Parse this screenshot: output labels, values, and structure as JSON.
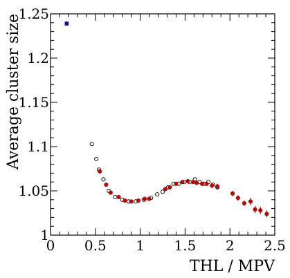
{
  "chart_data": {
    "type": "scatter",
    "title": "",
    "xlabel": "THL / MPV",
    "ylabel": "Average cluster size",
    "xlim": [
      0,
      2.5
    ],
    "ylim": [
      1,
      1.25
    ],
    "x_ticks": [
      {
        "value": 0,
        "label": "0"
      },
      {
        "value": 0.5,
        "label": "0.5"
      },
      {
        "value": 1,
        "label": "1"
      },
      {
        "value": 1.5,
        "label": "1.5"
      },
      {
        "value": 2,
        "label": "2"
      },
      {
        "value": 2.5,
        "label": "2.5"
      }
    ],
    "y_ticks": [
      {
        "value": 1,
        "label": "1"
      },
      {
        "value": 1.05,
        "label": "1.05"
      },
      {
        "value": 1.1,
        "label": "1.1"
      },
      {
        "value": 1.15,
        "label": "1.15"
      },
      {
        "value": 1.2,
        "label": "1.2"
      },
      {
        "value": 1.25,
        "label": "1.25"
      }
    ],
    "grid": false,
    "series": [
      {
        "marker": "open-circle",
        "color": "#000000",
        "points": [
          {
            "x": 0.46,
            "y": 1.103
          },
          {
            "x": 0.51,
            "y": 1.086
          },
          {
            "x": 0.54,
            "y": 1.074
          },
          {
            "x": 0.59,
            "y": 1.063
          },
          {
            "x": 0.65,
            "y": 1.05
          },
          {
            "x": 0.72,
            "y": 1.043
          },
          {
            "x": 0.8,
            "y": 1.04
          },
          {
            "x": 0.87,
            "y": 1.038
          },
          {
            "x": 0.95,
            "y": 1.038
          },
          {
            "x": 1.04,
            "y": 1.04
          },
          {
            "x": 1.12,
            "y": 1.042
          },
          {
            "x": 1.19,
            "y": 1.046
          },
          {
            "x": 1.25,
            "y": 1.049
          },
          {
            "x": 1.31,
            "y": 1.054
          },
          {
            "x": 1.37,
            "y": 1.058
          },
          {
            "x": 1.43,
            "y": 1.058
          },
          {
            "x": 1.49,
            "y": 1.06
          },
          {
            "x": 1.55,
            "y": 1.06
          },
          {
            "x": 1.61,
            "y": 1.063
          },
          {
            "x": 1.66,
            "y": 1.06
          },
          {
            "x": 1.71,
            "y": 1.058
          },
          {
            "x": 1.76,
            "y": 1.06
          },
          {
            "x": 1.81,
            "y": 1.057
          },
          {
            "x": 1.86,
            "y": 1.054
          }
        ]
      },
      {
        "marker": "filled-circle",
        "color": "#b00c0c",
        "points": [
          {
            "x": 0.55,
            "y": 1.072,
            "err": 0.002
          },
          {
            "x": 0.62,
            "y": 1.057,
            "err": 0.002
          },
          {
            "x": 0.67,
            "y": 1.048,
            "err": 0.002
          },
          {
            "x": 0.76,
            "y": 1.043,
            "err": 0.002
          },
          {
            "x": 0.83,
            "y": 1.039,
            "err": 0.002
          },
          {
            "x": 0.9,
            "y": 1.038,
            "err": 0.002
          },
          {
            "x": 0.98,
            "y": 1.039,
            "err": 0.002
          },
          {
            "x": 1.05,
            "y": 1.041,
            "err": 0.002
          },
          {
            "x": 1.1,
            "y": 1.041,
            "err": 0.002
          },
          {
            "x": 1.28,
            "y": 1.052,
            "err": 0.002
          },
          {
            "x": 1.33,
            "y": 1.054,
            "err": 0.002
          },
          {
            "x": 1.4,
            "y": 1.058,
            "err": 0.002
          },
          {
            "x": 1.47,
            "y": 1.06,
            "err": 0.002
          },
          {
            "x": 1.53,
            "y": 1.061,
            "err": 0.002
          },
          {
            "x": 1.59,
            "y": 1.06,
            "err": 0.002
          },
          {
            "x": 1.63,
            "y": 1.059,
            "err": 0.002
          },
          {
            "x": 1.69,
            "y": 1.058,
            "err": 0.002
          },
          {
            "x": 1.74,
            "y": 1.058,
            "err": 0.002
          },
          {
            "x": 1.8,
            "y": 1.056,
            "err": 0.003
          },
          {
            "x": 1.86,
            "y": 1.055,
            "err": 0.003
          },
          {
            "x": 2.03,
            "y": 1.047,
            "err": 0.003
          },
          {
            "x": 2.09,
            "y": 1.042,
            "err": 0.003
          },
          {
            "x": 2.16,
            "y": 1.036,
            "err": 0.003
          },
          {
            "x": 2.23,
            "y": 1.038,
            "err": 0.004
          },
          {
            "x": 2.28,
            "y": 1.029,
            "err": 0.004
          },
          {
            "x": 2.34,
            "y": 1.028,
            "err": 0.004
          },
          {
            "x": 2.41,
            "y": 1.024,
            "err": 0.004
          }
        ]
      },
      {
        "marker": "filled-square",
        "color": "#0d0d8a",
        "points": [
          {
            "x": 0.18,
            "y": 1.239
          }
        ]
      }
    ]
  }
}
